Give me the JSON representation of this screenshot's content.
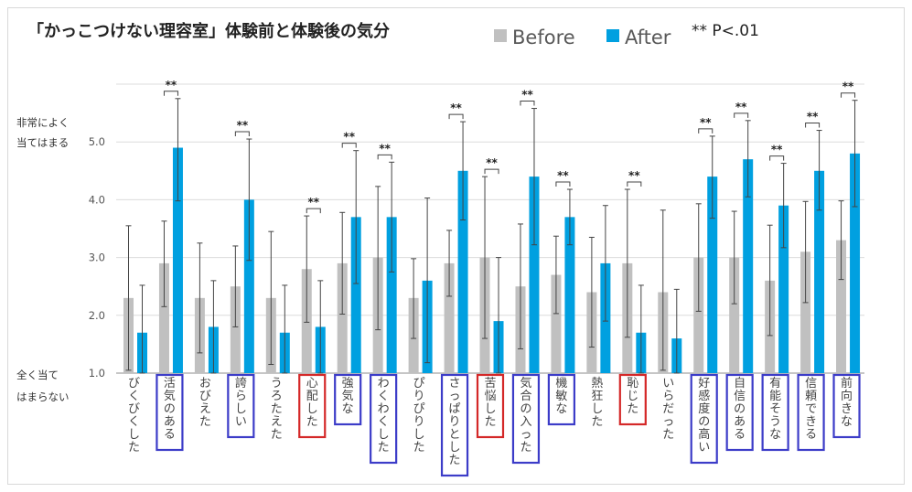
{
  "chart_data": {
    "type": "bar",
    "title": "「かっこつけない理容室」体験前と体験後の気分",
    "legend": [
      {
        "name": "Before",
        "color": "#c0c0c0"
      },
      {
        "name": "After",
        "color": "#00a0e0"
      }
    ],
    "significance_note": "**  P<.01",
    "legend_placement": "top-right",
    "ylim": [
      1.0,
      6.0
    ],
    "yticks": [
      "1.0",
      "2.0",
      "3.0",
      "4.0",
      "5.0"
    ],
    "ylabel_top": [
      "非常によく",
      "当てはまる"
    ],
    "ylabel_bottom": [
      "全く当て",
      "はまらない"
    ],
    "grid": true,
    "categories": [
      "びくびくした",
      "活気のある",
      "おびえた",
      "誇らしい",
      "うろたえた",
      "心配した",
      "強気な",
      "わくわくした",
      "ぴりぴりした",
      "さっぱりとした",
      "苦悩した",
      "気合の入った",
      "機敏な",
      "熱狂した",
      "恥じた",
      "いらだった",
      "好感度の高い",
      "自信のある",
      "有能そうな",
      "信頼できる",
      "前向きな"
    ],
    "series": [
      {
        "name": "Before",
        "values": [
          2.3,
          2.9,
          2.3,
          2.5,
          2.3,
          2.8,
          2.9,
          3.0,
          2.3,
          2.9,
          3.0,
          2.5,
          2.7,
          2.4,
          2.9,
          2.4,
          3.0,
          3.0,
          2.6,
          3.1,
          3.3
        ],
        "error_low": [
          1.05,
          2.15,
          1.35,
          1.8,
          1.15,
          1.88,
          2.02,
          1.75,
          1.6,
          2.33,
          1.6,
          1.42,
          2.03,
          1.45,
          1.62,
          1.05,
          2.07,
          2.2,
          1.65,
          2.22,
          2.62
        ],
        "error_high": [
          3.55,
          3.63,
          3.25,
          3.2,
          3.45,
          3.72,
          3.78,
          4.23,
          2.98,
          3.47,
          4.4,
          3.58,
          3.37,
          3.35,
          4.18,
          3.82,
          3.93,
          3.8,
          3.56,
          3.97,
          3.98
        ]
      },
      {
        "name": "After",
        "values": [
          1.7,
          4.9,
          1.8,
          4.0,
          1.7,
          1.8,
          3.7,
          3.7,
          2.6,
          4.5,
          1.9,
          4.4,
          3.7,
          2.9,
          1.7,
          1.6,
          4.4,
          4.7,
          3.9,
          4.5,
          4.8
        ],
        "error_low": [
          1.0,
          3.98,
          1.0,
          2.95,
          1.0,
          1.0,
          2.55,
          2.75,
          1.18,
          3.65,
          1.0,
          3.22,
          3.22,
          1.9,
          1.0,
          1.0,
          3.68,
          4.05,
          3.17,
          3.82,
          3.88
        ],
        "error_high": [
          2.52,
          5.75,
          2.6,
          5.05,
          2.52,
          2.6,
          4.85,
          4.65,
          4.03,
          5.35,
          3.0,
          5.58,
          4.18,
          3.9,
          2.52,
          2.45,
          5.1,
          5.37,
          4.63,
          5.2,
          5.72
        ]
      }
    ],
    "significant": [
      false,
      true,
      false,
      true,
      false,
      true,
      true,
      true,
      false,
      true,
      true,
      true,
      true,
      false,
      true,
      false,
      true,
      true,
      true,
      true,
      true
    ],
    "significance_mark": "**",
    "category_box": [
      "none",
      "blue",
      "none",
      "blue",
      "none",
      "red",
      "blue",
      "blue",
      "none",
      "blue",
      "red",
      "blue",
      "blue",
      "none",
      "red",
      "none",
      "blue",
      "blue",
      "blue",
      "blue",
      "blue"
    ],
    "box_colors": {
      "blue": "#3c3cc8",
      "red": "#d42828"
    }
  }
}
